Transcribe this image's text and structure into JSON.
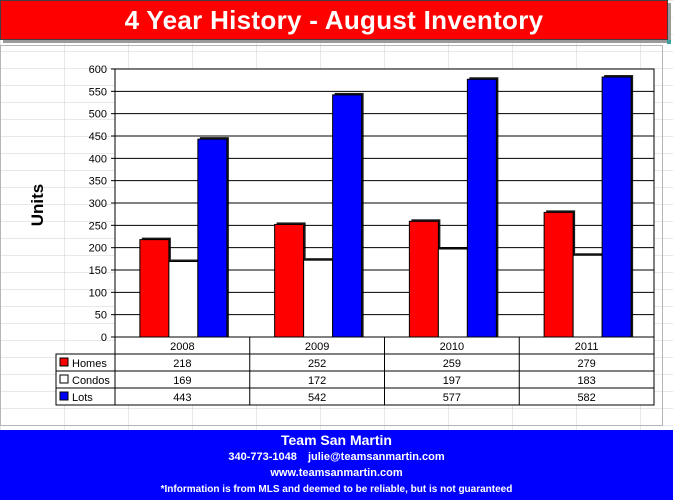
{
  "title": "4 Year History - August Inventory",
  "colors": {
    "title_bg": "#ff0000",
    "footer_bg": "#0000ff",
    "homes": "#ff0000",
    "condos": "#ffffff",
    "lots": "#0000ff"
  },
  "chart_data": {
    "type": "bar",
    "title": "4 Year History - August Inventory",
    "xlabel": "",
    "ylabel": "Units",
    "ylim": [
      0,
      600
    ],
    "yticks": [
      "0",
      "50",
      "100",
      "150",
      "200",
      "250",
      "300",
      "350",
      "400",
      "450",
      "500",
      "550",
      "600"
    ],
    "categories": [
      "2008",
      "2009",
      "2010",
      "2011"
    ],
    "grid": true,
    "legend": "data-table-left",
    "series": [
      {
        "name": "Homes",
        "color": "#ff0000",
        "values": [
          218,
          252,
          259,
          279
        ]
      },
      {
        "name": "Condos",
        "color": "#ffffff",
        "values": [
          169,
          172,
          197,
          183
        ]
      },
      {
        "name": "Lots",
        "color": "#0000ff",
        "values": [
          443,
          542,
          577,
          582
        ]
      }
    ]
  },
  "footer": {
    "team": "Team San Martin",
    "phone": "340-773-1048",
    "email": "julie@teamsanmartin.com",
    "website": "www.teamsanmartin.com",
    "disclaimer": "*Information is from MLS and deemed to be reliable, but is not guaranteed"
  }
}
